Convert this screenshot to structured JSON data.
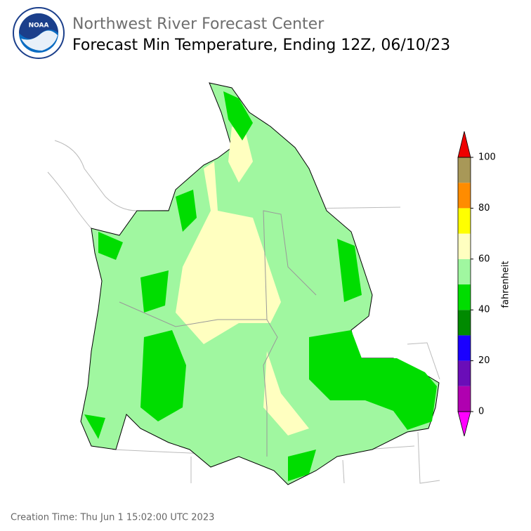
{
  "header": {
    "agency": "Northwest River Forecast Center",
    "title": "Forecast Min Temperature, Ending 12Z, 06/10/23"
  },
  "logo_text": "NOAA",
  "colorbar": {
    "label": "fahrenheit",
    "bounds": [
      0,
      10,
      20,
      30,
      40,
      50,
      60,
      70,
      80,
      90,
      100
    ],
    "colors": [
      "#b000b0",
      "#6a0db8",
      "#1a00ff",
      "#008a00",
      "#00dd00",
      "#a0f7a0",
      "#ffffc0",
      "#ffff00",
      "#ff8c00",
      "#a89858"
    ],
    "under_color": "#ff00ff",
    "over_color": "#ee0000",
    "ticks": [
      0,
      20,
      40,
      60,
      80,
      100
    ],
    "lim": [
      0,
      100
    ]
  },
  "footer": {
    "creation_time": "Creation Time: Thu Jun 1 15:02:00 UTC 2023"
  }
}
